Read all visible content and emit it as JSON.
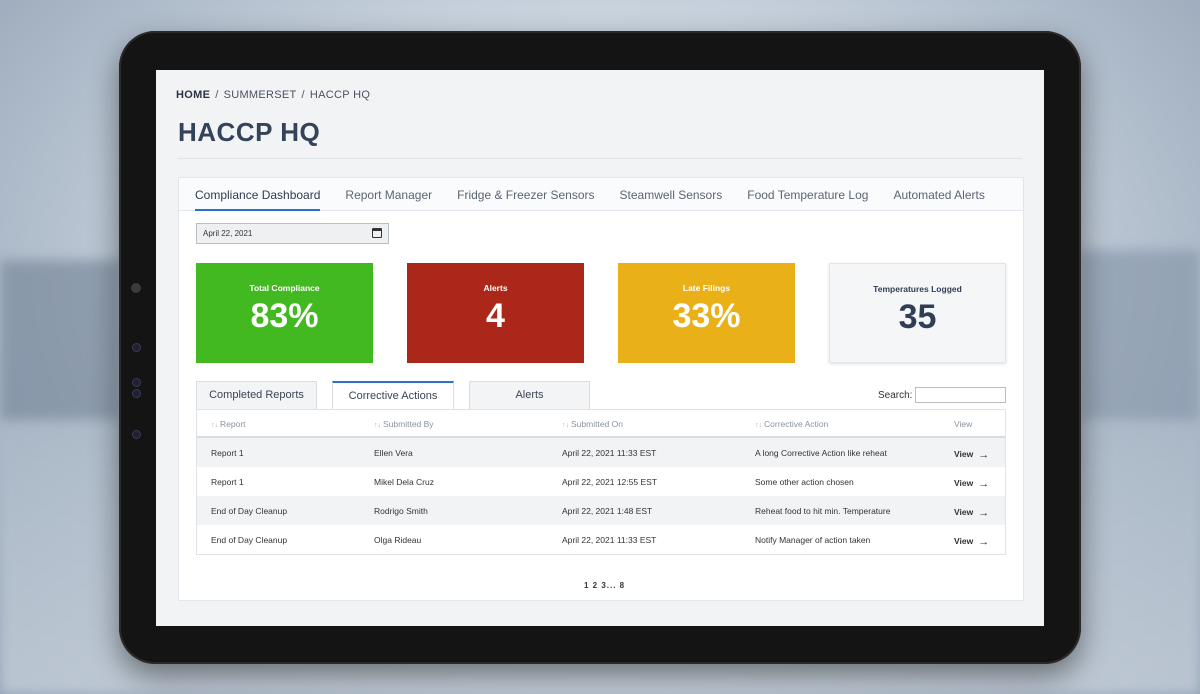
{
  "breadcrumb": {
    "home": "HOME",
    "sep1": "/",
    "item1": "SUMMERSET",
    "sep2": "/",
    "item2": "HACCP HQ"
  },
  "page": {
    "title": "HACCP HQ"
  },
  "tabs": [
    "Compliance Dashboard",
    "Report Manager",
    "Fridge & Freezer Sensors",
    "Steamwell Sensors",
    "Food Temperature Log",
    "Automated Alerts"
  ],
  "active_tab": "Compliance Dashboard",
  "date_input": {
    "value": "April 22, 2021"
  },
  "cards": [
    {
      "label": "Total Compliance",
      "value": "83%",
      "color": "#42b921"
    },
    {
      "label": "Alerts",
      "value": "4",
      "color": "#ab271a"
    },
    {
      "label": "Late Filings",
      "value": "33%",
      "color": "#e9b018"
    },
    {
      "label": "Temperatures Logged",
      "value": "35",
      "color": "#f5f6f8"
    }
  ],
  "subtabs": [
    "Completed Reports",
    "Corrective Actions",
    "Alerts"
  ],
  "active_subtab": "Corrective Actions",
  "search": {
    "label": "Search:",
    "value": ""
  },
  "table": {
    "columns": [
      "Report",
      "Submitted By",
      "Submitted On",
      "Corrective Action",
      "View"
    ],
    "sort_glyph": "↑↓",
    "rows": [
      [
        "Report 1",
        "Ellen Vera",
        "April 22, 2021 11:33 EST",
        "A long Corrective Action like reheat",
        "View"
      ],
      [
        "Report 1",
        "Mikel Dela Cruz",
        "April 22, 2021 12:55 EST",
        "Some other action chosen",
        "View"
      ],
      [
        "End of Day Cleanup",
        "Rodrigo Smith",
        "April 22, 2021 1:48 EST",
        "Reheat food to hit min. Temperature",
        "View"
      ],
      [
        "End of Day Cleanup",
        "Olga Rideau",
        "April 22, 2021 11:33 EST",
        "Notify Manager of action taken",
        "View"
      ]
    ],
    "arrow_glyph": "→"
  },
  "pagination": "1 2 3... 8",
  "colors": {
    "accent": "#2d6fd1",
    "title": "#34425a"
  }
}
